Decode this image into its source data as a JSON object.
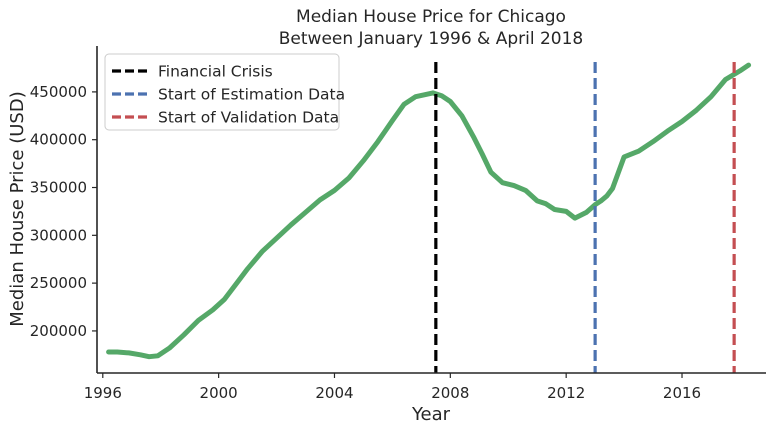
{
  "chart_data": {
    "type": "line",
    "title": "Median House Price for Chicago",
    "subtitle": "Between January 1996 & April 2018",
    "xlabel": "Year",
    "ylabel": "Median House Price (USD)",
    "xlim": [
      1995.8,
      2018.9
    ],
    "ylim": [
      156000,
      498000
    ],
    "xticks": [
      1996,
      2000,
      2004,
      2008,
      2012,
      2016
    ],
    "yticks": [
      200000,
      250000,
      300000,
      350000,
      400000,
      450000
    ],
    "grid": false,
    "legend_position": "top-left",
    "series": [
      {
        "name": "",
        "color": "#55a868",
        "x": [
          1996.2,
          1996.5,
          1996.9,
          1997.3,
          1997.6,
          1997.9,
          1998.3,
          1998.8,
          1999.3,
          1999.8,
          2000.2,
          2000.6,
          2001.0,
          2001.5,
          2002.0,
          2002.5,
          2003.0,
          2003.5,
          2004.0,
          2004.5,
          2005.0,
          2005.5,
          2006.0,
          2006.4,
          2006.8,
          2007.1,
          2007.4,
          2007.7,
          2008.0,
          2008.4,
          2008.8,
          2009.1,
          2009.4,
          2009.8,
          2010.2,
          2010.6,
          2011.0,
          2011.3,
          2011.6,
          2012.0,
          2012.3,
          2012.7,
          2013.0,
          2013.2,
          2013.4,
          2013.6,
          2014.0,
          2014.5,
          2015.0,
          2015.5,
          2016.0,
          2016.5,
          2017.0,
          2017.5,
          2018.0,
          2018.3
        ],
        "y": [
          178000,
          178000,
          177000,
          175000,
          173000,
          174000,
          182000,
          196000,
          211000,
          222000,
          233000,
          249000,
          265000,
          283000,
          297000,
          311000,
          324000,
          337000,
          347000,
          360000,
          378000,
          398000,
          420000,
          437000,
          445000,
          447000,
          449000,
          446000,
          440000,
          425000,
          403000,
          385000,
          366000,
          355000,
          352000,
          347000,
          336000,
          333000,
          327000,
          325000,
          318000,
          324000,
          332000,
          336000,
          341000,
          349000,
          382000,
          388000,
          398000,
          409000,
          419000,
          431000,
          445000,
          463000,
          472000,
          478000
        ]
      }
    ],
    "vlines": [
      {
        "label": "Financial Crisis",
        "x": 2007.5,
        "color": "#000000"
      },
      {
        "label": "Start of Estimation Data",
        "x": 2013.0,
        "color": "#4c72b0"
      },
      {
        "label": "Start of Validation Data",
        "x": 2017.8,
        "color": "#c44e52"
      }
    ]
  }
}
